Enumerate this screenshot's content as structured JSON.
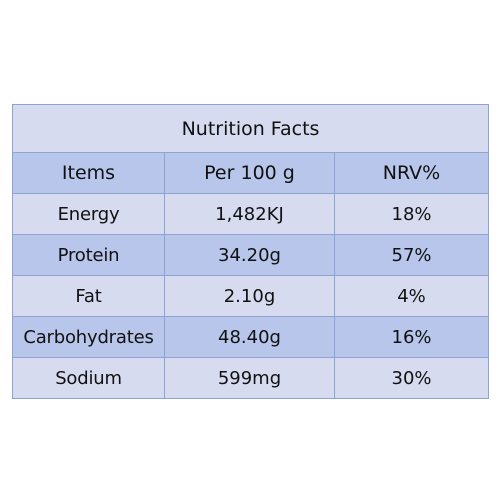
{
  "table": {
    "title": "Nutrition Facts",
    "headers": [
      "Items",
      "Per 100 g",
      "NRV%"
    ],
    "rows": [
      [
        "Energy",
        "1,482KJ",
        "18%"
      ],
      [
        "Protein",
        "34.20g",
        "57%"
      ],
      [
        "Fat",
        "2.10g",
        "4%"
      ],
      [
        "Carbohydrates",
        "48.40g",
        "16%"
      ],
      [
        "Sodium",
        "599mg",
        "30%"
      ]
    ]
  },
  "colors": {
    "light_row": "#d6dbf0",
    "dark_row": "#b7c6ea",
    "border": "#8ea3cf"
  }
}
